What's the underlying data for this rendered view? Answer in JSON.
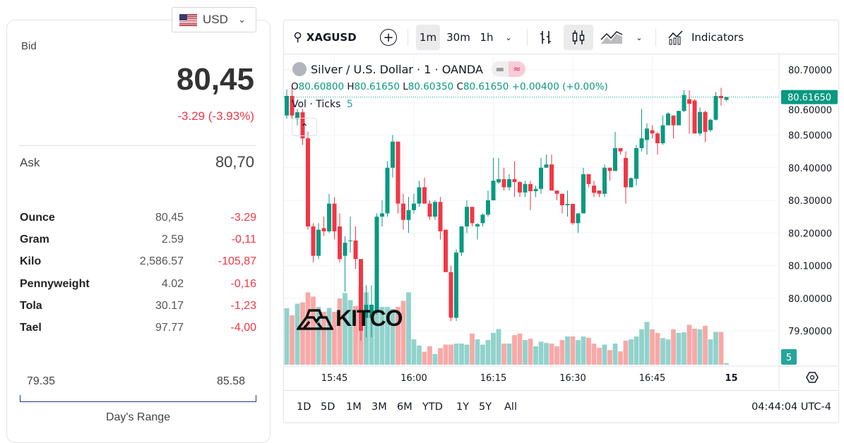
{
  "currency": {
    "label": "USD",
    "flag": "us-flag-icon"
  },
  "quote": {
    "bid_label": "Bid",
    "bid": "80,45",
    "change": "-3.29 (-3.93%)",
    "ask_label": "Ask",
    "ask": "80,70"
  },
  "units": [
    {
      "unit": "Ounce",
      "value": "80,45",
      "change": "-3.29"
    },
    {
      "unit": "Gram",
      "value": "2.59",
      "change": "-0,11"
    },
    {
      "unit": "Kilo",
      "value": "2,586.57",
      "change": "-105,87"
    },
    {
      "unit": "Pennyweight",
      "value": "4.02",
      "change": "-0,16"
    },
    {
      "unit": "Tola",
      "value": "30.17",
      "change": "-1,23"
    },
    {
      "unit": "Tael",
      "value": "97.77",
      "change": "-4,00"
    }
  ],
  "range": {
    "low": "79.35",
    "high": "85.58",
    "label": "Day's Range"
  },
  "toolbar": {
    "symbol": "XAGUSD",
    "intervals": [
      "1m",
      "30m",
      "1h"
    ],
    "active_interval": "1m",
    "indicators": "Indicators"
  },
  "legend": {
    "title": "Silver / U.S. Dollar · 1 · OANDA",
    "o": "80.60800",
    "h": "80.61650",
    "l": "80.60350",
    "c": "80.61650",
    "chg": "+0.00400 (+0.00%)",
    "vol_label": "Vol · Ticks",
    "vol": "5"
  },
  "watermark": "KITCO",
  "ranges": [
    "1D",
    "5D",
    "1M",
    "3M",
    "6M",
    "YTD",
    "1Y",
    "5Y",
    "All"
  ],
  "clock": "04:44:04 UTC-4",
  "colors": {
    "up": "#089981",
    "down": "#f23645",
    "vol_up": "#92d2cc",
    "vol_down": "#f7a9a7"
  },
  "chart_data": {
    "type": "candlestick",
    "title": "Silver / U.S. Dollar · 1 · OANDA",
    "ylim": [
      79.85,
      80.7
    ],
    "y_ticks": [
      "80.70000",
      "80.60000",
      "80.50000",
      "80.40000",
      "80.30000",
      "80.20000",
      "80.10000",
      "80.00000",
      "79.90000"
    ],
    "y_tick_values": [
      80.7,
      80.6,
      80.5,
      80.4,
      80.3,
      80.2,
      80.1,
      80.0,
      79.9
    ],
    "last_price": "80.61650",
    "last_volume": "5",
    "x_ticks": [
      {
        "label": "15:45",
        "index": 9
      },
      {
        "label": "16:00",
        "index": 24
      },
      {
        "label": "16:15",
        "index": 39
      },
      {
        "label": "16:30",
        "index": 54
      },
      {
        "label": "16:45",
        "index": 69
      },
      {
        "label": "15",
        "index": 84
      }
    ],
    "ohlc": [
      [
        80.56,
        80.64,
        80.55,
        80.62
      ],
      [
        80.62,
        80.65,
        80.55,
        80.56
      ],
      [
        80.55,
        80.58,
        80.53,
        80.57
      ],
      [
        80.57,
        80.58,
        80.47,
        80.49
      ],
      [
        80.49,
        80.51,
        80.21,
        80.22
      ],
      [
        80.22,
        80.23,
        80.11,
        80.13
      ],
      [
        80.13,
        80.23,
        80.12,
        80.21
      ],
      [
        80.215,
        80.25,
        80.19,
        80.205
      ],
      [
        80.205,
        80.32,
        80.2,
        80.29
      ],
      [
        80.29,
        80.31,
        80.18,
        80.205
      ],
      [
        80.22,
        80.26,
        80.11,
        80.12
      ],
      [
        80.13,
        80.19,
        80.02,
        80.17
      ],
      [
        80.175,
        80.25,
        80.14,
        80.177
      ],
      [
        80.177,
        80.22,
        80.09,
        80.12
      ],
      [
        80.12,
        80.12,
        79.87,
        79.9
      ],
      [
        79.94,
        80.04,
        79.88,
        79.98
      ],
      [
        79.94,
        80.04,
        79.88,
        79.98
      ],
      [
        79.96,
        80.26,
        79.95,
        80.25
      ],
      [
        80.25,
        80.3,
        80.22,
        80.26
      ],
      [
        80.26,
        80.42,
        80.25,
        80.4
      ],
      [
        80.4,
        80.5,
        80.37,
        80.48
      ],
      [
        80.48,
        80.48,
        80.26,
        80.29
      ],
      [
        80.29,
        80.32,
        80.21,
        80.24
      ],
      [
        80.24,
        80.31,
        80.2,
        80.27
      ],
      [
        80.27,
        80.32,
        80.26,
        80.29
      ],
      [
        80.29,
        80.36,
        80.28,
        80.34
      ],
      [
        80.34,
        80.37,
        80.29,
        80.29
      ],
      [
        80.29,
        80.3,
        80.24,
        80.25
      ],
      [
        80.25,
        80.3,
        80.24,
        80.295
      ],
      [
        80.295,
        80.31,
        80.18,
        80.205
      ],
      [
        80.21,
        80.21,
        80.08,
        80.08
      ],
      [
        80.08,
        80.1,
        79.93,
        79.94
      ],
      [
        79.94,
        80.15,
        79.93,
        80.14
      ],
      [
        80.14,
        80.22,
        80.13,
        80.22
      ],
      [
        80.22,
        80.3,
        80.2,
        80.28
      ],
      [
        80.28,
        80.28,
        80.22,
        80.23
      ],
      [
        80.22,
        80.23,
        80.18,
        80.227
      ],
      [
        80.23,
        80.26,
        80.22,
        80.256
      ],
      [
        80.256,
        80.33,
        80.25,
        80.3
      ],
      [
        80.3,
        80.43,
        80.3,
        80.36
      ],
      [
        80.355,
        80.43,
        80.35,
        80.365
      ],
      [
        80.365,
        80.4,
        80.33,
        80.34
      ],
      [
        80.34,
        80.38,
        80.33,
        80.365
      ],
      [
        80.365,
        80.42,
        80.31,
        80.356
      ],
      [
        80.356,
        80.36,
        80.31,
        80.324
      ],
      [
        80.324,
        80.36,
        80.31,
        80.35
      ],
      [
        80.35,
        80.36,
        80.27,
        80.328
      ],
      [
        80.328,
        80.345,
        80.31,
        80.335
      ],
      [
        80.335,
        80.43,
        80.32,
        80.4
      ],
      [
        80.4,
        80.44,
        80.4,
        80.41
      ],
      [
        80.41,
        80.44,
        80.33,
        80.33
      ],
      [
        80.33,
        80.33,
        80.3,
        80.32
      ],
      [
        80.32,
        80.32,
        80.26,
        80.285
      ],
      [
        80.285,
        80.33,
        80.25,
        80.289
      ],
      [
        80.289,
        80.29,
        80.225,
        80.23
      ],
      [
        80.23,
        80.26,
        80.2,
        80.26
      ],
      [
        80.26,
        80.4,
        80.26,
        80.38
      ],
      [
        80.38,
        80.38,
        80.34,
        80.35
      ],
      [
        80.345,
        80.36,
        80.31,
        80.323
      ],
      [
        80.33,
        80.33,
        80.31,
        80.32
      ],
      [
        80.32,
        80.41,
        80.31,
        80.4
      ],
      [
        80.4,
        80.4,
        80.36,
        80.39
      ],
      [
        80.39,
        80.51,
        80.39,
        80.46
      ],
      [
        80.46,
        80.46,
        80.44,
        80.45
      ],
      [
        80.43,
        80.45,
        80.29,
        80.34
      ],
      [
        80.34,
        80.37,
        80.34,
        80.368
      ],
      [
        80.366,
        80.47,
        80.345,
        80.46
      ],
      [
        80.46,
        80.58,
        80.45,
        80.49
      ],
      [
        80.485,
        80.536,
        80.44,
        80.52
      ],
      [
        80.515,
        80.53,
        80.49,
        80.505
      ],
      [
        80.505,
        80.51,
        80.44,
        80.475
      ],
      [
        80.475,
        80.56,
        80.47,
        80.53
      ],
      [
        80.53,
        80.57,
        80.53,
        80.566
      ],
      [
        80.56,
        80.56,
        80.49,
        80.53
      ],
      [
        80.53,
        80.575,
        80.53,
        80.574
      ],
      [
        80.574,
        80.637,
        80.57,
        80.623
      ],
      [
        80.61,
        80.637,
        80.504,
        80.596
      ],
      [
        80.606,
        80.61,
        80.505,
        80.505
      ],
      [
        80.505,
        80.585,
        80.498,
        80.571
      ],
      [
        80.571,
        80.575,
        80.478,
        80.51
      ],
      [
        80.515,
        80.55,
        80.51,
        80.547
      ],
      [
        80.547,
        80.632,
        80.545,
        80.62
      ],
      [
        80.62,
        80.645,
        80.59,
        80.613
      ],
      [
        80.608,
        80.6165,
        80.6035,
        80.6165
      ]
    ],
    "volume": [
      174,
      152,
      188,
      192,
      223,
      210,
      178,
      163,
      175,
      163,
      204,
      221,
      199,
      181,
      241,
      223,
      185,
      170,
      178,
      178,
      172,
      178,
      197,
      223,
      78,
      59,
      40,
      57,
      33,
      51,
      62,
      62,
      65,
      65,
      62,
      96,
      78,
      62,
      76,
      98,
      110,
      65,
      65,
      91,
      96,
      76,
      80,
      57,
      71,
      67,
      65,
      57,
      76,
      87,
      87,
      76,
      87,
      83,
      65,
      52,
      62,
      45,
      65,
      41,
      74,
      78,
      87,
      109,
      132,
      109,
      98,
      82,
      78,
      109,
      98,
      100,
      123,
      111,
      109,
      120,
      78,
      101,
      101,
      5
    ]
  }
}
